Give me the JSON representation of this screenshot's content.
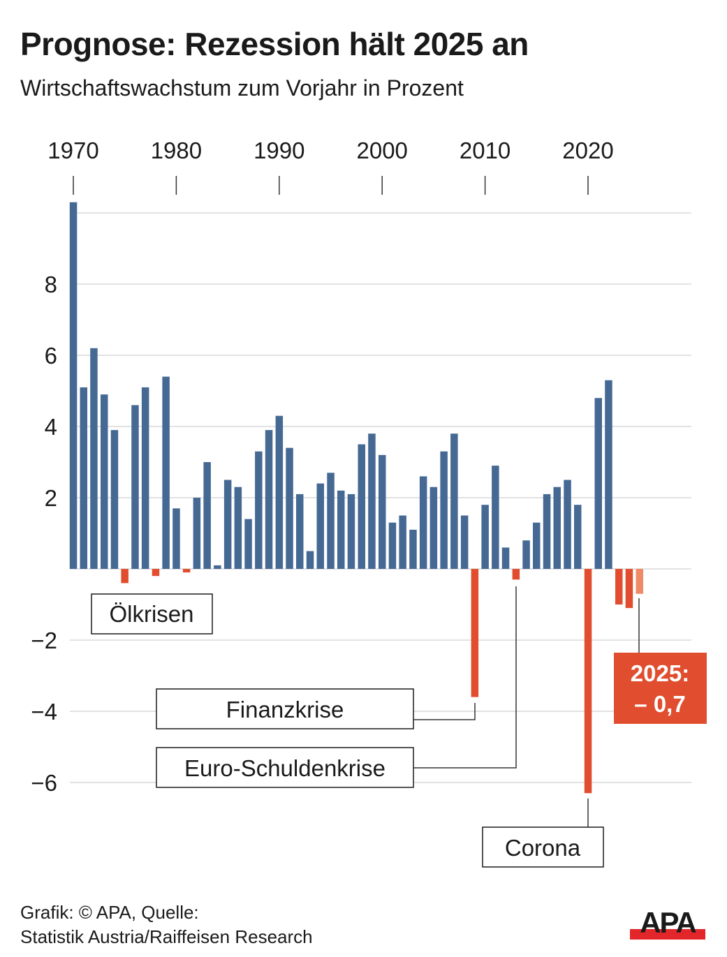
{
  "title": "Prognose: Rezession hält 2025 an",
  "subtitle": "Wirtschaftswachstum zum Vorjahr in Prozent",
  "footer": {
    "line1": "Grafik: © APA, Quelle:",
    "line2": "Statistik Austria/Raiffeisen Research"
  },
  "logo": {
    "text": "APA",
    "color_text": "#1a1a1a",
    "color_bar": "#e3262a"
  },
  "colors": {
    "positive": "#466994",
    "negative": "#e04e2f",
    "forecast": "#ee8a66",
    "grid": "#d9d9d9",
    "callout_bg": "#e04e2f"
  },
  "chart_data": {
    "type": "bar",
    "title": "Prognose: Rezession hält 2025 an",
    "subtitle": "Wirtschaftswachstum zum Vorjahr in Prozent",
    "xlabel": "",
    "ylabel": "",
    "ylim": [
      -7,
      10.5
    ],
    "grid": true,
    "x_axis_position": "top",
    "x_ticks": [
      "1970",
      "1980",
      "1990",
      "2000",
      "2010",
      "2020"
    ],
    "y_ticks": [
      {
        "value": 8,
        "label": "8"
      },
      {
        "value": 6,
        "label": "6"
      },
      {
        "value": 4,
        "label": "4"
      },
      {
        "value": 2,
        "label": "2"
      },
      {
        "value": -2,
        "label": "−2"
      },
      {
        "value": -4,
        "label": "−4"
      },
      {
        "value": -6,
        "label": "−6"
      }
    ],
    "gridlines": [
      10,
      8,
      6,
      4,
      2,
      0,
      -2,
      -4,
      -6
    ],
    "categories": [
      1970,
      1971,
      1972,
      1973,
      1974,
      1975,
      1976,
      1977,
      1978,
      1979,
      1980,
      1981,
      1982,
      1983,
      1984,
      1985,
      1986,
      1987,
      1988,
      1989,
      1990,
      1991,
      1992,
      1993,
      1994,
      1995,
      1996,
      1997,
      1998,
      1999,
      2000,
      2001,
      2002,
      2003,
      2004,
      2005,
      2006,
      2007,
      2008,
      2009,
      2010,
      2011,
      2012,
      2013,
      2014,
      2015,
      2016,
      2017,
      2018,
      2019,
      2020,
      2021,
      2022,
      2023,
      2024,
      2025
    ],
    "values": [
      10.3,
      5.1,
      6.2,
      4.9,
      3.9,
      -0.4,
      4.6,
      5.1,
      -0.2,
      5.4,
      1.7,
      -0.1,
      2.0,
      3.0,
      0.1,
      2.5,
      2.3,
      1.4,
      3.3,
      3.9,
      4.3,
      3.4,
      2.1,
      0.5,
      2.4,
      2.7,
      2.2,
      2.1,
      3.5,
      3.8,
      3.2,
      1.3,
      1.5,
      1.1,
      2.6,
      2.3,
      3.3,
      3.8,
      1.5,
      -3.6,
      1.8,
      2.9,
      0.6,
      -0.3,
      0.8,
      1.3,
      2.1,
      2.3,
      2.5,
      1.8,
      -6.3,
      4.8,
      5.3,
      -1.0,
      -1.1,
      -0.7
    ],
    "forecast_years": [
      2025
    ],
    "annotations": [
      {
        "label": "Ölkrisen",
        "years": [
          1975,
          1978,
          1981
        ]
      },
      {
        "label": "Finanzkrise",
        "year": 2009
      },
      {
        "label": "Euro-Schuldenkrise",
        "year": 2013
      },
      {
        "label": "Corona",
        "year": 2020
      }
    ],
    "callout": {
      "line1": "2025:",
      "line2": "– 0,7",
      "year": 2025
    }
  }
}
